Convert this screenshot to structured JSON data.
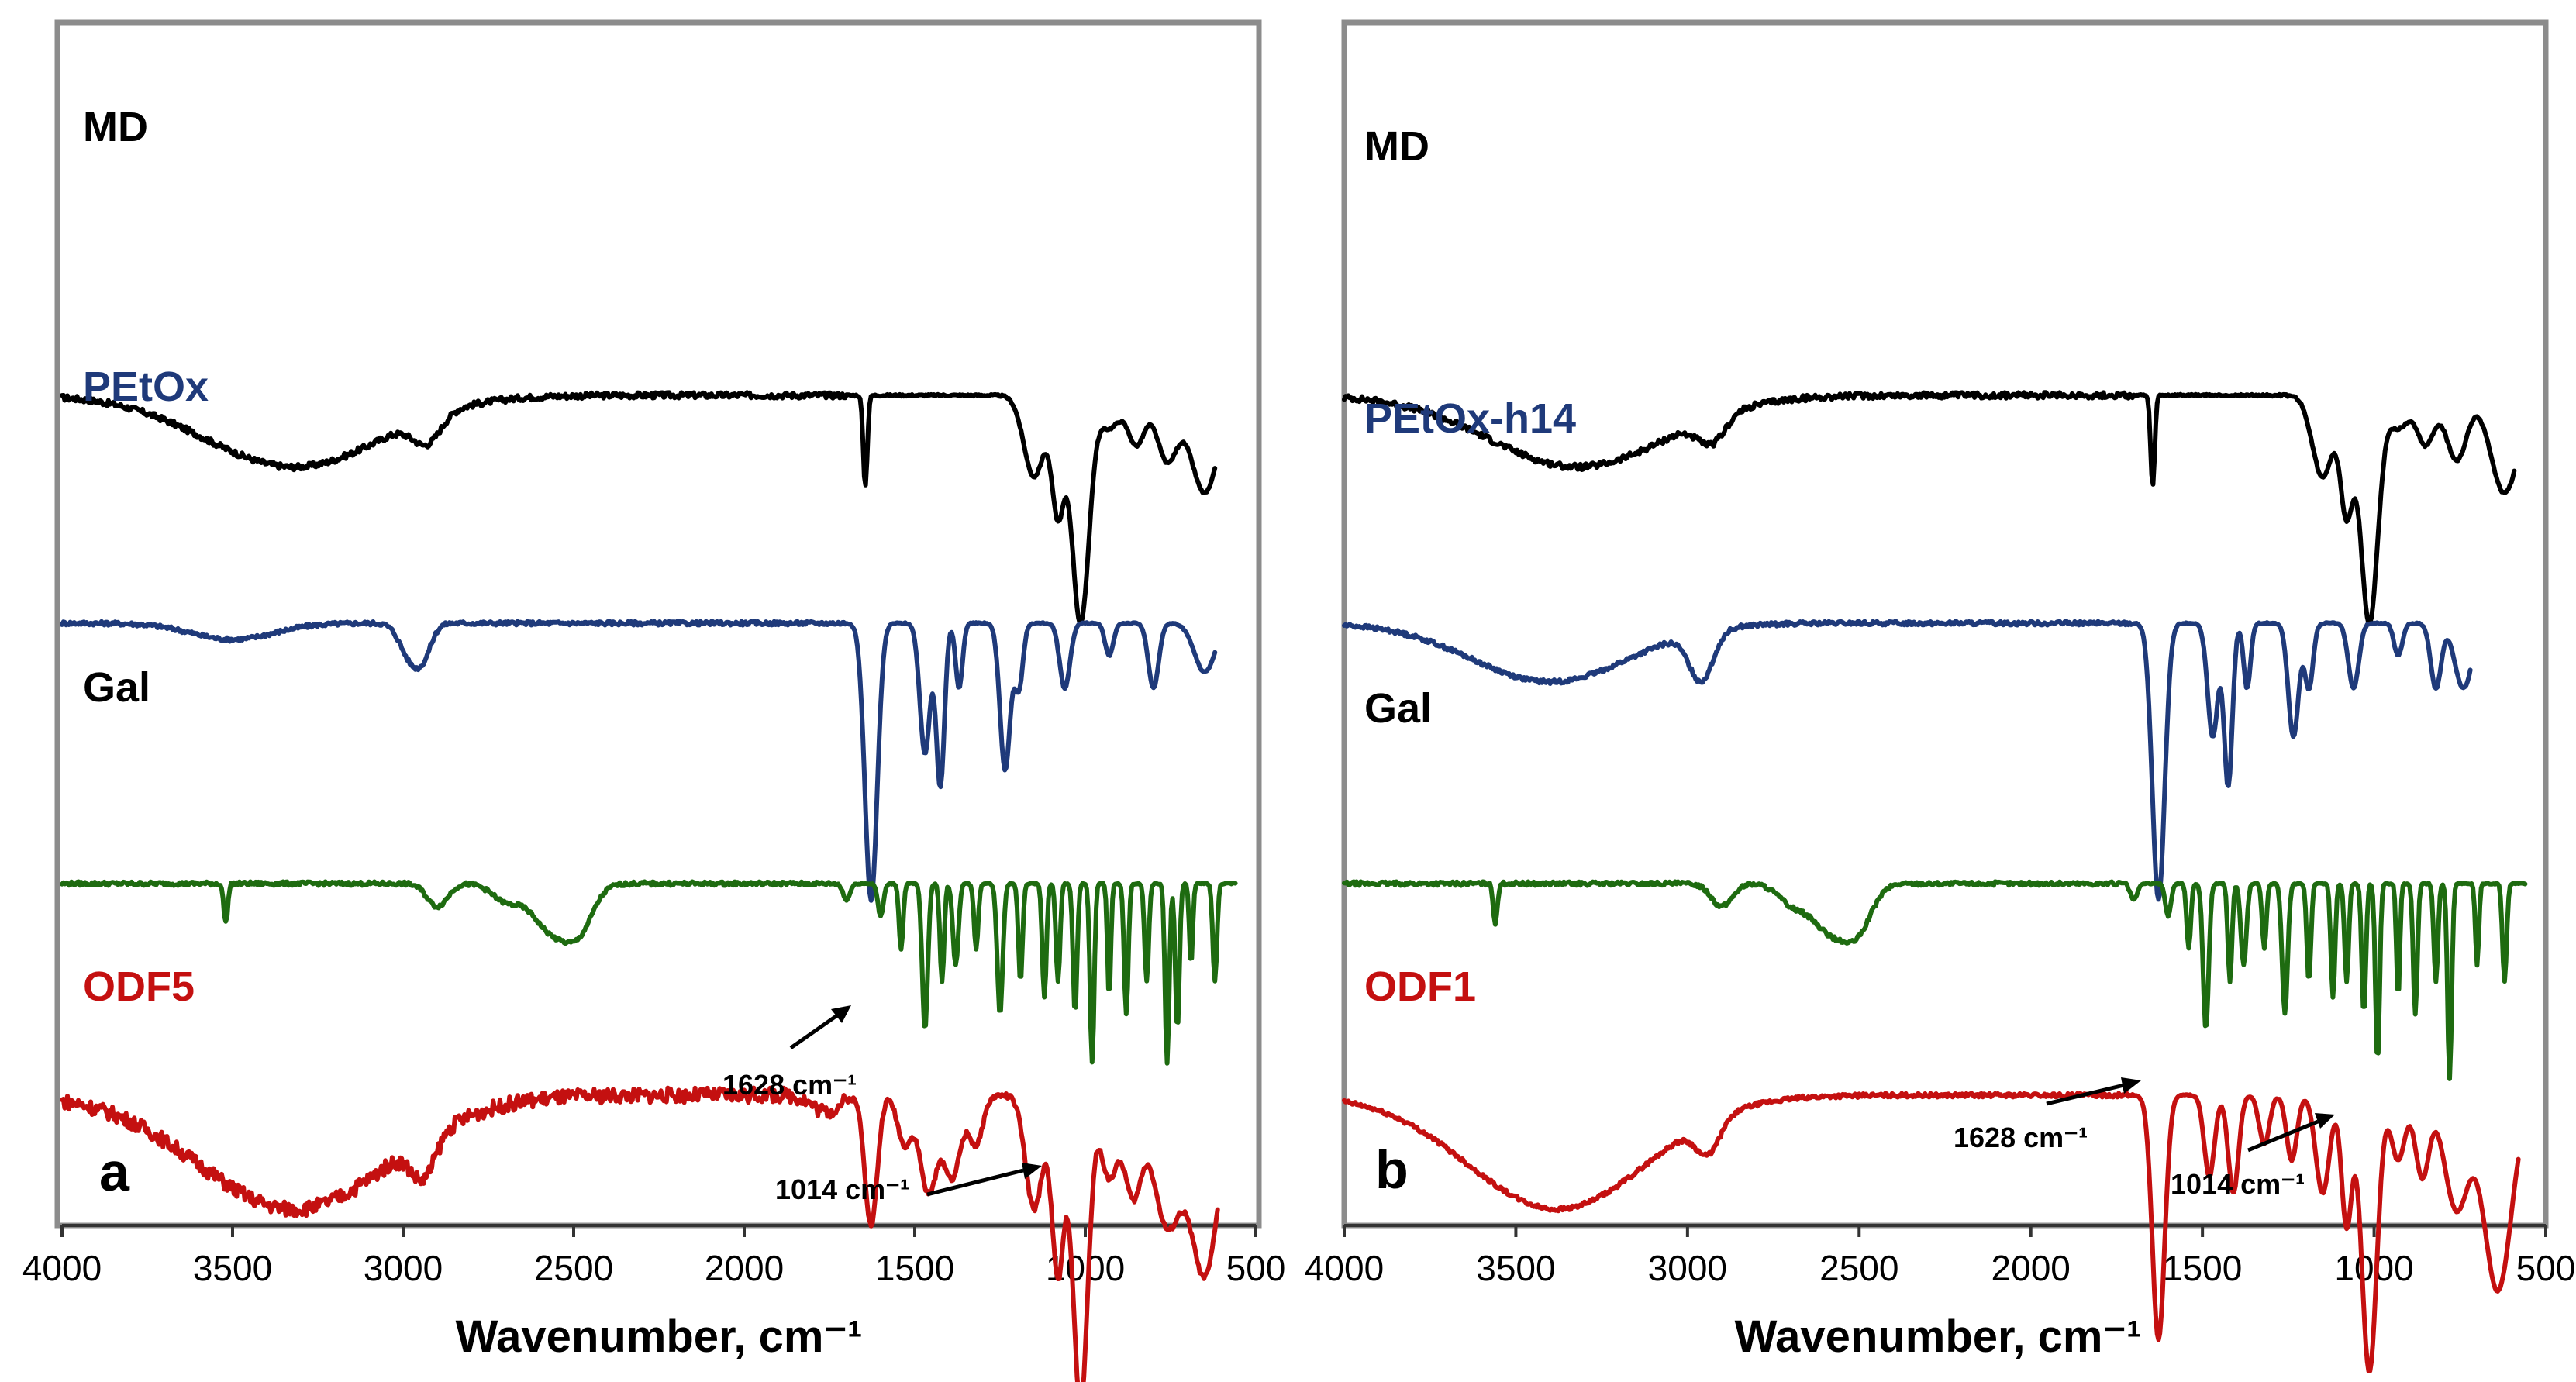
{
  "chart_data": [
    {
      "type": "line",
      "panel": "a",
      "xlabel": "Wavenumber, cm⁻¹",
      "ylabel": "",
      "xlim": [
        4000,
        500
      ],
      "xticks": [
        4000,
        3500,
        3000,
        2500,
        2000,
        1500,
        1000,
        500
      ],
      "series": [
        {
          "name": "MD",
          "color": "#000000",
          "offset": 3.45,
          "start": 4000,
          "end": 620,
          "bands": [
            [
              3320,
              260,
              0.22
            ],
            [
              2930,
              40,
              0.08
            ],
            [
              1645,
              6,
              0.28
            ],
            [
              1150,
              30,
              0.25
            ],
            [
              1080,
              18,
              0.35
            ],
            [
              1014,
              25,
              0.7
            ],
            [
              930,
              30,
              0.1
            ],
            [
              850,
              25,
              0.15
            ],
            [
              760,
              30,
              0.2
            ],
            [
              650,
              40,
              0.3
            ]
          ],
          "noise": 0.006
        },
        {
          "name": "PEtOx",
          "color": "#1f3a7a",
          "offset": 2.75,
          "start": 4000,
          "end": 620,
          "bands": [
            [
              3500,
              120,
              0.05
            ],
            [
              2980,
              30,
              0.1
            ],
            [
              2940,
              25,
              0.08
            ],
            [
              1628,
              18,
              0.85
            ],
            [
              1470,
              15,
              0.4
            ],
            [
              1425,
              12,
              0.5
            ],
            [
              1370,
              10,
              0.2
            ],
            [
              1235,
              15,
              0.45
            ],
            [
              1195,
              12,
              0.2
            ],
            [
              1060,
              15,
              0.2
            ],
            [
              930,
              12,
              0.1
            ],
            [
              800,
              15,
              0.2
            ],
            [
              650,
              30,
              0.15
            ]
          ],
          "noise": 0.004
        },
        {
          "name": "Gal",
          "color": "#1e6b10",
          "offset": 1.95,
          "start": 4000,
          "end": 560,
          "bands": [
            [
              3520,
              6,
              0.12
            ],
            [
              2900,
              30,
              0.07
            ],
            [
              2700,
              40,
              0.05
            ],
            [
              2560,
              60,
              0.15
            ],
            [
              2480,
              40,
              0.1
            ],
            [
              1700,
              10,
              0.05
            ],
            [
              1600,
              8,
              0.1
            ],
            [
              1540,
              6,
              0.2
            ],
            [
              1470,
              8,
              0.45
            ],
            [
              1420,
              6,
              0.3
            ],
            [
              1380,
              8,
              0.25
            ],
            [
              1320,
              6,
              0.2
            ],
            [
              1250,
              8,
              0.4
            ],
            [
              1190,
              6,
              0.3
            ],
            [
              1120,
              6,
              0.35
            ],
            [
              1080,
              6,
              0.3
            ],
            [
              1030,
              6,
              0.4
            ],
            [
              980,
              6,
              0.55
            ],
            [
              930,
              5,
              0.35
            ],
            [
              880,
              6,
              0.4
            ],
            [
              820,
              6,
              0.3
            ],
            [
              760,
              6,
              0.55
            ],
            [
              730,
              6,
              0.45
            ],
            [
              690,
              5,
              0.25
            ],
            [
              620,
              6,
              0.3
            ]
          ],
          "noise": 0.004
        },
        {
          "name": "ODF5",
          "color": "#c41010",
          "offset": 1.3,
          "start": 4000,
          "end": 610,
          "bands": [
            [
              3320,
              280,
              0.35
            ],
            [
              2940,
              35,
              0.12
            ],
            [
              1760,
              40,
              0.05
            ],
            [
              1628,
              18,
              0.4
            ],
            [
              1530,
              20,
              0.15
            ],
            [
              1460,
              25,
              0.3
            ],
            [
              1390,
              25,
              0.25
            ],
            [
              1320,
              20,
              0.15
            ],
            [
              1150,
              25,
              0.35
            ],
            [
              1080,
              18,
              0.55
            ],
            [
              1014,
              22,
              0.95
            ],
            [
              930,
              25,
              0.25
            ],
            [
              860,
              25,
              0.3
            ],
            [
              760,
              40,
              0.4
            ],
            [
              650,
              40,
              0.55
            ]
          ],
          "noise": 0.015
        }
      ],
      "annotations": [
        {
          "text": "1628 cm⁻¹"
        },
        {
          "text": "1014 cm⁻¹"
        }
      ]
    },
    {
      "type": "line",
      "panel": "b",
      "xlabel": "Wavenumber, cm⁻¹",
      "ylabel": "",
      "xlim": [
        4000,
        500
      ],
      "xticks": [
        4000,
        3500,
        3000,
        2500,
        2000,
        1500,
        1000,
        500
      ],
      "series": [
        {
          "name": "MD",
          "color": "#000000",
          "offset": 3.45,
          "start": 4000,
          "end": 590,
          "bands": [
            [
              3320,
              260,
              0.22
            ],
            [
              2930,
              40,
              0.08
            ],
            [
              1645,
              6,
              0.28
            ],
            [
              1150,
              30,
              0.25
            ],
            [
              1080,
              18,
              0.35
            ],
            [
              1014,
              25,
              0.7
            ],
            [
              930,
              30,
              0.1
            ],
            [
              850,
              25,
              0.15
            ],
            [
              760,
              30,
              0.2
            ],
            [
              620,
              40,
              0.3
            ]
          ],
          "noise": 0.006
        },
        {
          "name": "PEtOx-h14",
          "color": "#1f3a7a",
          "offset": 2.75,
          "start": 4000,
          "end": 720,
          "bands": [
            [
              3400,
              230,
              0.18
            ],
            [
              2960,
              35,
              0.15
            ],
            [
              1628,
              18,
              0.85
            ],
            [
              1470,
              15,
              0.35
            ],
            [
              1425,
              12,
              0.5
            ],
            [
              1370,
              10,
              0.2
            ],
            [
              1235,
              15,
              0.35
            ],
            [
              1190,
              12,
              0.2
            ],
            [
              1060,
              15,
              0.2
            ],
            [
              930,
              12,
              0.1
            ],
            [
              820,
              15,
              0.2
            ],
            [
              740,
              25,
              0.2
            ]
          ],
          "noise": 0.004
        },
        {
          "name": "Gal",
          "color": "#1e6b10",
          "offset": 1.95,
          "start": 4000,
          "end": 560,
          "bands": [
            [
              3560,
              6,
              0.12
            ],
            [
              2900,
              30,
              0.07
            ],
            [
              2700,
              40,
              0.05
            ],
            [
              2580,
              60,
              0.15
            ],
            [
              2500,
              40,
              0.1
            ],
            [
              1700,
              10,
              0.05
            ],
            [
              1600,
              8,
              0.1
            ],
            [
              1540,
              6,
              0.2
            ],
            [
              1490,
              8,
              0.45
            ],
            [
              1420,
              6,
              0.3
            ],
            [
              1380,
              8,
              0.25
            ],
            [
              1320,
              6,
              0.2
            ],
            [
              1260,
              8,
              0.4
            ],
            [
              1190,
              6,
              0.3
            ],
            [
              1120,
              6,
              0.35
            ],
            [
              1080,
              6,
              0.3
            ],
            [
              1030,
              6,
              0.4
            ],
            [
              990,
              6,
              0.55
            ],
            [
              930,
              5,
              0.35
            ],
            [
              880,
              6,
              0.4
            ],
            [
              820,
              6,
              0.3
            ],
            [
              780,
              6,
              0.6
            ],
            [
              700,
              5,
              0.25
            ],
            [
              620,
              6,
              0.3
            ]
          ],
          "noise": 0.004
        },
        {
          "name": "ODF1",
          "color": "#c41010",
          "offset": 1.3,
          "start": 4000,
          "end": 580,
          "bands": [
            [
              3380,
              260,
              0.35
            ],
            [
              2940,
              35,
              0.1
            ],
            [
              1628,
              18,
              0.75
            ],
            [
              1480,
              15,
              0.25
            ],
            [
              1410,
              15,
              0.3
            ],
            [
              1320,
              15,
              0.15
            ],
            [
              1240,
              15,
              0.2
            ],
            [
              1150,
              20,
              0.3
            ],
            [
              1080,
              15,
              0.4
            ],
            [
              1014,
              22,
              0.85
            ],
            [
              930,
              20,
              0.2
            ],
            [
              860,
              20,
              0.25
            ],
            [
              760,
              35,
              0.35
            ],
            [
              640,
              40,
              0.6
            ]
          ],
          "noise": 0.004
        }
      ],
      "annotations": [
        {
          "text": "1628 cm⁻¹"
        },
        {
          "text": "1014 cm⁻¹"
        }
      ]
    }
  ]
}
